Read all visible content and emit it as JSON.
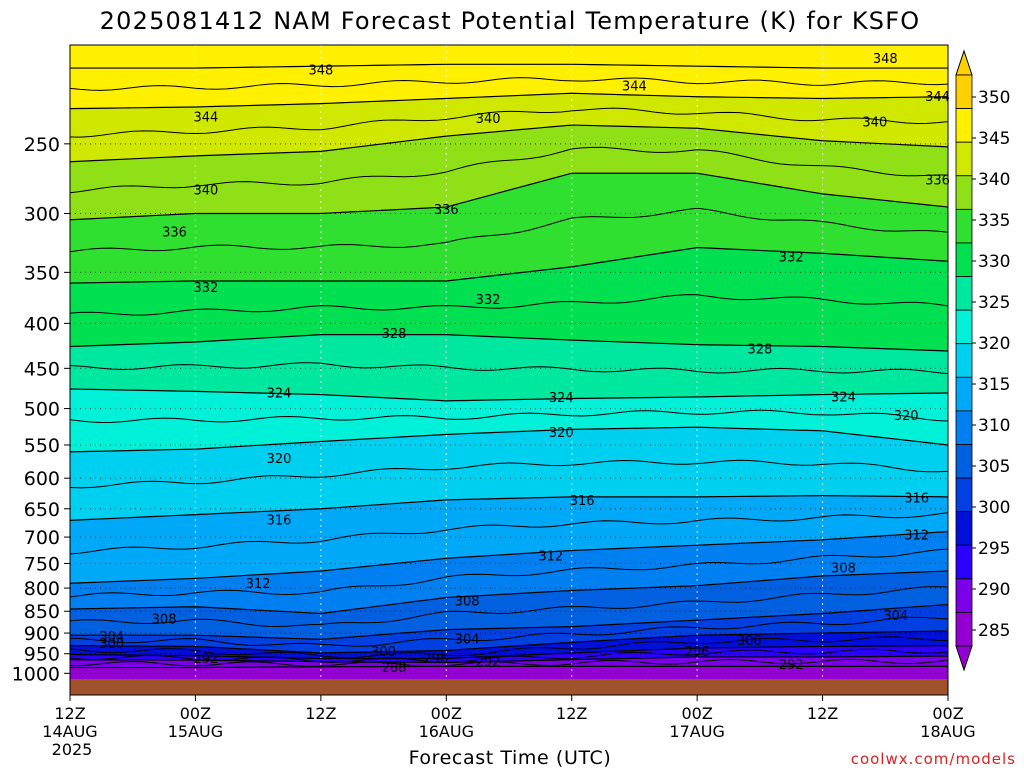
{
  "title": "2025081412 NAM Forecast Potential Temperature (K) for KSFO",
  "xlabel": "Forecast Time (UTC)",
  "credit": "coolwx.com/models",
  "colors": {
    "ground": "#a0522d",
    "credit": "#dd2222",
    "contour": "#000000"
  },
  "colorbar": {
    "labels": [
      "285",
      "290",
      "295",
      "300",
      "305",
      "310",
      "315",
      "320",
      "325",
      "330",
      "335",
      "340",
      "345",
      "350"
    ],
    "colors": [
      "#9400d3",
      "#7b00e8",
      "#2b00ff",
      "#0010d8",
      "#0040e0",
      "#0060e0",
      "#0080f0",
      "#00a8f8",
      "#00d0f0",
      "#00f0d8",
      "#00e8a0",
      "#00e050",
      "#30e030",
      "#90e018",
      "#d0e800",
      "#fff000",
      "#ffd000"
    ]
  },
  "chart_data": {
    "type": "contour",
    "title": "2025081412 NAM Forecast Potential Temperature (K) for KSFO",
    "xlabel": "Forecast Time (UTC)",
    "ylabel": "",
    "y_scale": "log-pressure",
    "y_ticks": [
      250,
      300,
      350,
      400,
      450,
      500,
      550,
      600,
      650,
      700,
      750,
      800,
      850,
      900,
      950,
      1000
    ],
    "x_ticks": [
      {
        "time": "12Z",
        "date": "14AUG",
        "year": "2025"
      },
      {
        "time": "00Z",
        "date": "15AUG",
        "year": ""
      },
      {
        "time": "12Z",
        "date": "",
        "year": ""
      },
      {
        "time": "00Z",
        "date": "16AUG",
        "year": ""
      },
      {
        "time": "12Z",
        "date": "",
        "year": ""
      },
      {
        "time": "00Z",
        "date": "17AUG",
        "year": ""
      },
      {
        "time": "12Z",
        "date": "",
        "year": ""
      },
      {
        "time": "00Z",
        "date": "18AUG",
        "year": ""
      }
    ],
    "x_hours": [
      0,
      12,
      24,
      36,
      48,
      60,
      72,
      84
    ],
    "colorbar_range": [
      285,
      350
    ],
    "isotherms": [
      {
        "theta": 348,
        "pressure": [
          205,
          205,
          204,
          203,
          203,
          204,
          205,
          205
        ]
      },
      {
        "theta": 344,
        "pressure": [
          228,
          227,
          225,
          222,
          219,
          221,
          222,
          221
        ]
      },
      {
        "theta": 340,
        "pressure": [
          262,
          258,
          255,
          245,
          238,
          240,
          248,
          252
        ]
      },
      {
        "theta": 336,
        "pressure": [
          305,
          300,
          300,
          295,
          270,
          270,
          285,
          295
        ]
      },
      {
        "theta": 332,
        "pressure": [
          360,
          358,
          358,
          358,
          345,
          328,
          333,
          340
        ]
      },
      {
        "theta": 328,
        "pressure": [
          425,
          420,
          412,
          412,
          418,
          423,
          425,
          430
        ]
      },
      {
        "theta": 324,
        "pressure": [
          475,
          478,
          482,
          490,
          487,
          485,
          482,
          480
        ]
      },
      {
        "theta": 320,
        "pressure": [
          560,
          556,
          545,
          535,
          528,
          525,
          530,
          550
        ]
      },
      {
        "theta": 316,
        "pressure": [
          670,
          660,
          650,
          635,
          630,
          630,
          628,
          630
        ]
      },
      {
        "theta": 312,
        "pressure": [
          790,
          780,
          765,
          740,
          725,
          715,
          705,
          690
        ]
      },
      {
        "theta": 308,
        "pressure": [
          845,
          840,
          855,
          820,
          805,
          795,
          775,
          765
        ]
      },
      {
        "theta": 304,
        "pressure": [
          905,
          905,
          915,
          892,
          885,
          870,
          855,
          835
        ]
      },
      {
        "theta": 300,
        "pressure": [
          930,
          932,
          948,
          942,
          922,
          905,
          900,
          895
        ]
      },
      {
        "theta": 296,
        "pressure": [
          952,
          955,
          962,
          962,
          948,
          936,
          932,
          930
        ]
      },
      {
        "theta": 292,
        "pressure": [
          965,
          966,
          970,
          972,
          965,
          958,
          958,
          956
        ]
      },
      {
        "theta": 288,
        "pressure": [
          985,
          985,
          983,
          982,
          982,
          982,
          982,
          982
        ]
      }
    ],
    "labels_shown": [
      {
        "text": "348",
        "hour": 24,
        "pressure": 206
      },
      {
        "text": "348",
        "hour": 78,
        "pressure": 200
      },
      {
        "text": "344",
        "hour": 54,
        "pressure": 215
      },
      {
        "text": "344",
        "hour": 83,
        "pressure": 221
      },
      {
        "text": "344",
        "hour": 13,
        "pressure": 233
      },
      {
        "text": "340",
        "hour": 40,
        "pressure": 234
      },
      {
        "text": "340",
        "hour": 77,
        "pressure": 236
      },
      {
        "text": "340",
        "hour": 13,
        "pressure": 282
      },
      {
        "text": "336",
        "hour": 36,
        "pressure": 297
      },
      {
        "text": "336",
        "hour": 83,
        "pressure": 275
      },
      {
        "text": "336",
        "hour": 10,
        "pressure": 315
      },
      {
        "text": "332",
        "hour": 13,
        "pressure": 364
      },
      {
        "text": "332",
        "hour": 40,
        "pressure": 376
      },
      {
        "text": "332",
        "hour": 69,
        "pressure": 336
      },
      {
        "text": "328",
        "hour": 31,
        "pressure": 411
      },
      {
        "text": "328",
        "hour": 66,
        "pressure": 428
      },
      {
        "text": "324",
        "hour": 20,
        "pressure": 480
      },
      {
        "text": "324",
        "hour": 47,
        "pressure": 486
      },
      {
        "text": "324",
        "hour": 74,
        "pressure": 485
      },
      {
        "text": "320",
        "hour": 20,
        "pressure": 570
      },
      {
        "text": "320",
        "hour": 47,
        "pressure": 532
      },
      {
        "text": "320",
        "hour": 80,
        "pressure": 509
      },
      {
        "text": "316",
        "hour": 20,
        "pressure": 669
      },
      {
        "text": "316",
        "hour": 49,
        "pressure": 636
      },
      {
        "text": "316",
        "hour": 81,
        "pressure": 632
      },
      {
        "text": "312",
        "hour": 18,
        "pressure": 790
      },
      {
        "text": "312",
        "hour": 46,
        "pressure": 736
      },
      {
        "text": "312",
        "hour": 81,
        "pressure": 696
      },
      {
        "text": "308",
        "hour": 9,
        "pressure": 867
      },
      {
        "text": "308",
        "hour": 38,
        "pressure": 827
      },
      {
        "text": "308",
        "hour": 74,
        "pressure": 759
      },
      {
        "text": "304",
        "hour": 4,
        "pressure": 908
      },
      {
        "text": "304",
        "hour": 38,
        "pressure": 914
      },
      {
        "text": "304",
        "hour": 79,
        "pressure": 859
      },
      {
        "text": "300",
        "hour": 4,
        "pressure": 925
      },
      {
        "text": "300",
        "hour": 30,
        "pressure": 945
      },
      {
        "text": "300",
        "hour": 65,
        "pressure": 918
      },
      {
        "text": "296",
        "hour": 35,
        "pressure": 962
      },
      {
        "text": "296",
        "hour": 60,
        "pressure": 945
      },
      {
        "text": "292",
        "hour": 13,
        "pressure": 962
      },
      {
        "text": "292",
        "hour": 40,
        "pressure": 970
      },
      {
        "text": "292",
        "hour": 69,
        "pressure": 977
      },
      {
        "text": "288",
        "hour": 31,
        "pressure": 985
      }
    ]
  }
}
